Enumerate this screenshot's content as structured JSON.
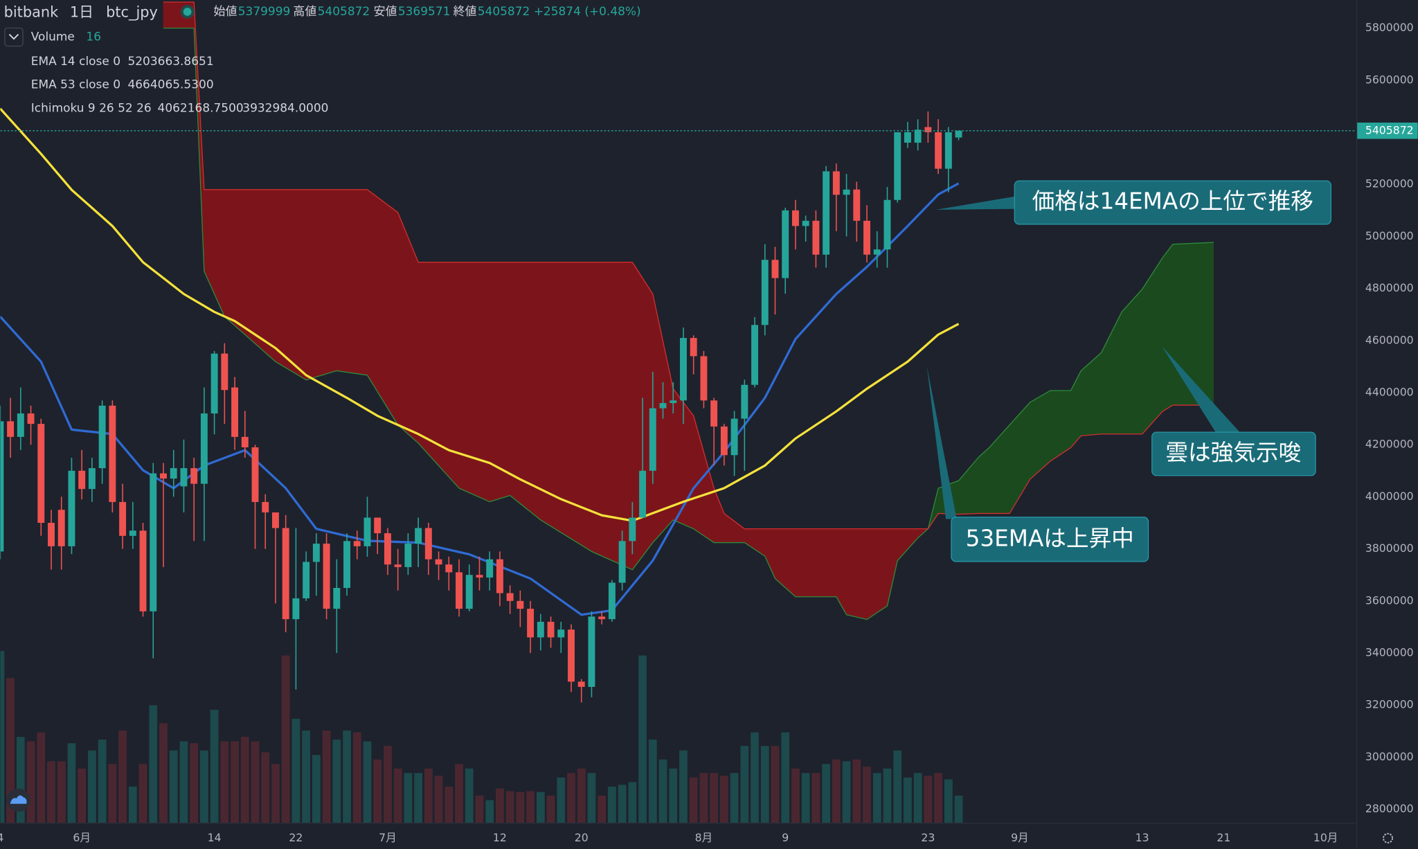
{
  "header": {
    "exchange": "bitbank",
    "interval": "1日",
    "symbol": "btc_jpy",
    "ohlc_labels": [
      "始値",
      "高値",
      "安値",
      "終値"
    ],
    "change": "+25874 (+0.48%)"
  },
  "annotations": [
    "価格は14EMAの上位で推移",
    "雲は強気示唆",
    "53EMAは上昇中"
  ],
  "chart_data": {
    "type": "candlestick",
    "up_color": "#26a69a",
    "down_color": "#ef5350",
    "xlim": [
      -8,
      125
    ],
    "ylim": [
      2748000,
      5908000
    ],
    "xticks": [
      {
        "value": -8,
        "label": "4"
      },
      {
        "value": 0,
        "label": "6月"
      },
      {
        "value": 13,
        "label": "14"
      },
      {
        "value": 21,
        "label": "22"
      },
      {
        "value": 30,
        "label": "7月"
      },
      {
        "value": 41,
        "label": "12"
      },
      {
        "value": 49,
        "label": "20"
      },
      {
        "value": 61,
        "label": "8月"
      },
      {
        "value": 69,
        "label": "9"
      },
      {
        "value": 83,
        "label": "23"
      },
      {
        "value": 92,
        "label": "9月"
      },
      {
        "value": 104,
        "label": "13"
      },
      {
        "value": 112,
        "label": "21"
      },
      {
        "value": 122,
        "label": "10月"
      }
    ],
    "yticks": [
      2800000,
      3000000,
      3200000,
      3400000,
      3600000,
      3800000,
      4000000,
      4200000,
      4400000,
      4600000,
      4800000,
      5000000,
      5200000,
      5400000,
      5600000,
      5800000
    ],
    "x": [
      -8,
      -7,
      -6,
      -5,
      -4,
      -3,
      -2,
      -1,
      0,
      1,
      2,
      3,
      4,
      5,
      6,
      7,
      8,
      9,
      10,
      11,
      12,
      13,
      14,
      15,
      16,
      17,
      18,
      19,
      20,
      21,
      22,
      23,
      24,
      25,
      26,
      27,
      28,
      29,
      30,
      31,
      32,
      33,
      34,
      35,
      36,
      37,
      38,
      39,
      40,
      41,
      42,
      43,
      44,
      45,
      46,
      47,
      48,
      49,
      50,
      51,
      52,
      53,
      54,
      55,
      56,
      57,
      58,
      59,
      60,
      61,
      62,
      63,
      64,
      65,
      66,
      67,
      68,
      69,
      70,
      71,
      72,
      73,
      74,
      75,
      76,
      77,
      78,
      79,
      80,
      81,
      82,
      83,
      84,
      85,
      86
    ],
    "open": [
      3790000,
      4290000,
      4230000,
      4320000,
      4280000,
      3900000,
      3950000,
      3810000,
      4100000,
      4030000,
      4110000,
      4350000,
      3980000,
      3850000,
      3870000,
      3560000,
      4090000,
      4070000,
      4040000,
      4110000,
      4050000,
      4320000,
      4550000,
      4420000,
      4230000,
      4190000,
      3980000,
      3940000,
      3880000,
      3530000,
      3610000,
      3750000,
      3820000,
      3570000,
      3650000,
      3830000,
      3810000,
      3920000,
      3860000,
      3740000,
      3730000,
      3820000,
      3880000,
      3760000,
      3740000,
      3710000,
      3570000,
      3700000,
      3690000,
      3760000,
      3630000,
      3600000,
      3570000,
      3460000,
      3520000,
      3460000,
      3490000,
      3290000,
      3270000,
      3540000,
      3530000,
      3670000,
      3830000,
      3920000,
      4100000,
      4340000,
      4360000,
      4370000,
      4610000,
      4540000,
      4370000,
      4270000,
      4160000,
      4300000,
      4430000,
      4660000,
      4910000,
      4840000,
      5100000,
      5040000,
      5060000,
      4930000,
      5250000,
      5160000,
      5180000,
      5060000,
      4930000,
      4950000,
      5140000,
      5360000,
      5360000,
      5420000,
      5400000,
      5260000,
      5379999
    ],
    "high": [
      4350000,
      4380000,
      4420000,
      4350000,
      4300000,
      3950000,
      4000000,
      4150000,
      4180000,
      4150000,
      4370000,
      4370000,
      4050000,
      3980000,
      3900000,
      4130000,
      4130000,
      4180000,
      4220000,
      4150000,
      4420000,
      4560000,
      4590000,
      4460000,
      4330000,
      4200000,
      4010000,
      3940000,
      3930000,
      3880000,
      3790000,
      3860000,
      3860000,
      3760000,
      3860000,
      3870000,
      4000000,
      3920000,
      3880000,
      3800000,
      3860000,
      3920000,
      3900000,
      3790000,
      3770000,
      3760000,
      3740000,
      3770000,
      3790000,
      3790000,
      3660000,
      3640000,
      3600000,
      3550000,
      3540000,
      3520000,
      3510000,
      3300000,
      3560000,
      3560000,
      3680000,
      3870000,
      3980000,
      4380000,
      4480000,
      4440000,
      4440000,
      4650000,
      4620000,
      4560000,
      4380000,
      4280000,
      4330000,
      4450000,
      4690000,
      4970000,
      4960000,
      5110000,
      5140000,
      5080000,
      5100000,
      5270000,
      5280000,
      5240000,
      5210000,
      5120000,
      5020000,
      5190000,
      5400000,
      5440000,
      5450000,
      5480000,
      5450000,
      5420000,
      5405872
    ],
    "low": [
      3760000,
      4150000,
      4180000,
      4200000,
      3850000,
      3720000,
      3720000,
      3780000,
      3990000,
      3980000,
      4050000,
      3940000,
      3800000,
      3800000,
      3540000,
      3380000,
      3730000,
      4000000,
      3940000,
      3830000,
      3830000,
      4240000,
      4280000,
      4180000,
      4150000,
      3800000,
      3800000,
      3590000,
      3480000,
      3260000,
      3600000,
      3620000,
      3530000,
      3400000,
      3620000,
      3760000,
      3770000,
      3780000,
      3700000,
      3640000,
      3700000,
      3730000,
      3700000,
      3680000,
      3640000,
      3540000,
      3560000,
      3640000,
      3640000,
      3580000,
      3550000,
      3500000,
      3400000,
      3410000,
      3420000,
      3400000,
      3250000,
      3210000,
      3230000,
      3510000,
      3520000,
      3640000,
      3780000,
      3920000,
      4050000,
      4300000,
      4320000,
      4280000,
      4470000,
      4340000,
      4120000,
      4120000,
      4080000,
      4100000,
      4420000,
      4620000,
      4700000,
      4780000,
      4950000,
      4980000,
      4880000,
      4880000,
      5020000,
      5000000,
      4980000,
      4900000,
      4880000,
      4880000,
      5130000,
      5340000,
      5330000,
      5360000,
      5240000,
      5170000,
      5369571
    ],
    "close": [
      4290000,
      4230000,
      4320000,
      4280000,
      3900000,
      3810000,
      3810000,
      4100000,
      4030000,
      4110000,
      4350000,
      3980000,
      3850000,
      3870000,
      3560000,
      4090000,
      4070000,
      4110000,
      4110000,
      4050000,
      4320000,
      4550000,
      4410000,
      4230000,
      4190000,
      3980000,
      3940000,
      3880000,
      3530000,
      3610000,
      3750000,
      3820000,
      3570000,
      3650000,
      3830000,
      3810000,
      3920000,
      3860000,
      3740000,
      3730000,
      3820000,
      3880000,
      3760000,
      3740000,
      3710000,
      3570000,
      3700000,
      3690000,
      3760000,
      3630000,
      3600000,
      3570000,
      3460000,
      3520000,
      3460000,
      3490000,
      3290000,
      3270000,
      3540000,
      3530000,
      3670000,
      3830000,
      3920000,
      4100000,
      4340000,
      4360000,
      4370000,
      4610000,
      4540000,
      4370000,
      4270000,
      4160000,
      4300000,
      4430000,
      4660000,
      4910000,
      4840000,
      5100000,
      5040000,
      5060000,
      4930000,
      5250000,
      5160000,
      5180000,
      5060000,
      4930000,
      4950000,
      5140000,
      5400000,
      5400000,
      5410000,
      5400000,
      5260000,
      5400000,
      5405872
    ],
    "volume": {
      "name": "Volume",
      "setting": "16",
      "up_color": "#1d4a4c",
      "down_color": "#4a2730",
      "values": [
        190,
        160,
        95,
        90,
        100,
        68,
        68,
        88,
        60,
        80,
        92,
        65,
        102,
        40,
        65,
        130,
        110,
        80,
        90,
        88,
        80,
        125,
        90,
        90,
        95,
        90,
        78,
        65,
        185,
        115,
        102,
        75,
        102,
        92,
        102,
        100,
        90,
        70,
        85,
        60,
        55,
        55,
        60,
        52,
        40,
        65,
        60,
        30,
        25,
        38,
        35,
        34,
        35,
        34,
        30,
        50,
        55,
        60,
        55,
        30,
        40,
        42,
        45,
        185,
        92,
        70,
        60,
        80,
        50,
        55,
        55,
        52,
        55,
        85,
        100,
        85,
        85,
        100,
        60,
        55,
        55,
        65,
        70,
        68,
        70,
        62,
        55,
        60,
        80,
        50,
        55,
        52,
        55,
        48,
        30
      ]
    },
    "lines": [
      {
        "name": "EMA 14 close 0",
        "value_label": "5203663.8651",
        "color": "#2f6bd3",
        "x": [
          -8,
          -4,
          -1,
          3,
          6,
          9,
          12,
          16,
          20,
          23,
          28,
          33,
          38,
          44,
          49,
          52,
          56,
          60,
          63,
          67,
          70,
          74,
          77,
          81,
          84,
          86
        ],
        "values": [
          4692000,
          4519000,
          4258000,
          4241000,
          4102000,
          4033000,
          4120000,
          4179000,
          4033000,
          3877000,
          3831000,
          3824000,
          3779000,
          3686000,
          3547000,
          3564000,
          3755000,
          4033000,
          4172000,
          4380000,
          4606000,
          4779000,
          4883000,
          5040000,
          5161000,
          5203663.8651
        ]
      },
      {
        "name": "EMA 53 close 0",
        "value_label": "4664065.5300",
        "color": "#f5e23b",
        "x": [
          -8,
          -4,
          -1,
          3,
          6,
          10,
          13,
          15,
          19,
          22,
          26,
          29,
          33,
          36,
          40,
          43,
          47,
          51,
          54,
          59,
          63,
          67,
          70,
          74,
          77,
          81,
          84,
          86
        ],
        "values": [
          5491000,
          5317000,
          5179000,
          5040000,
          4901000,
          4779000,
          4710000,
          4675000,
          4571000,
          4467000,
          4380000,
          4311000,
          4241000,
          4179000,
          4130000,
          4067000,
          3991000,
          3929000,
          3908000,
          3981000,
          4033000,
          4120000,
          4224000,
          4328000,
          4415000,
          4519000,
          4623000,
          4664065.53
        ]
      }
    ],
    "ichimoku": {
      "name": "Ichimoku 9 26 52 26",
      "value_labels": [
        "4062168.7500",
        "3932984.0000"
      ],
      "span_a_color": "#2e8b3a",
      "span_b_color": "#d32f2f",
      "bull_fill": "#1b4a1f",
      "bear_fill": "#7c151b",
      "x": [
        8,
        11,
        12,
        14,
        16,
        19,
        22,
        25,
        28,
        31,
        33,
        37,
        40,
        42,
        45,
        50,
        54,
        56,
        58,
        60,
        62,
        63,
        65,
        67,
        68,
        70,
        74,
        75,
        77,
        79,
        80,
        82,
        83,
        84,
        86,
        88,
        89,
        91,
        93,
        95,
        97,
        98,
        100,
        102,
        104,
        106,
        107,
        111
      ],
      "span_a": [
        5800000,
        5800000,
        4866000,
        4692000,
        4623000,
        4519000,
        4449000,
        4484000,
        4467000,
        4276000,
        4206000,
        4033000,
        3981000,
        4005000,
        3911000,
        3790000,
        3720000,
        3824000,
        3911000,
        3877000,
        3824000,
        3824000,
        3824000,
        3772000,
        3686000,
        3616000,
        3616000,
        3547000,
        3529000,
        3581000,
        3755000,
        3842000,
        3877000,
        4033000,
        4062168.75,
        4154000,
        4189000,
        4276000,
        4363000,
        4408000,
        4408000,
        4484000,
        4554000,
        4710000,
        4797000,
        4918000,
        4970000,
        4977000
      ],
      "span_b": [
        5900000,
        5900000,
        5180000,
        5180000,
        5180000,
        5180000,
        5180000,
        5180000,
        5180000,
        5092000,
        4901000,
        4901000,
        4901000,
        4901000,
        4901000,
        4901000,
        4901000,
        4779000,
        4415000,
        4311000,
        4033000,
        3936000,
        3877000,
        3877000,
        3877000,
        3877000,
        3877000,
        3877000,
        3877000,
        3877000,
        3877000,
        3877000,
        3877000,
        3936000,
        3932984,
        3936000,
        3936000,
        3936000,
        4067000,
        4137000,
        4189000,
        4234000,
        4241000,
        4241000,
        4241000,
        4328000,
        4352000,
        4352000
      ]
    }
  }
}
